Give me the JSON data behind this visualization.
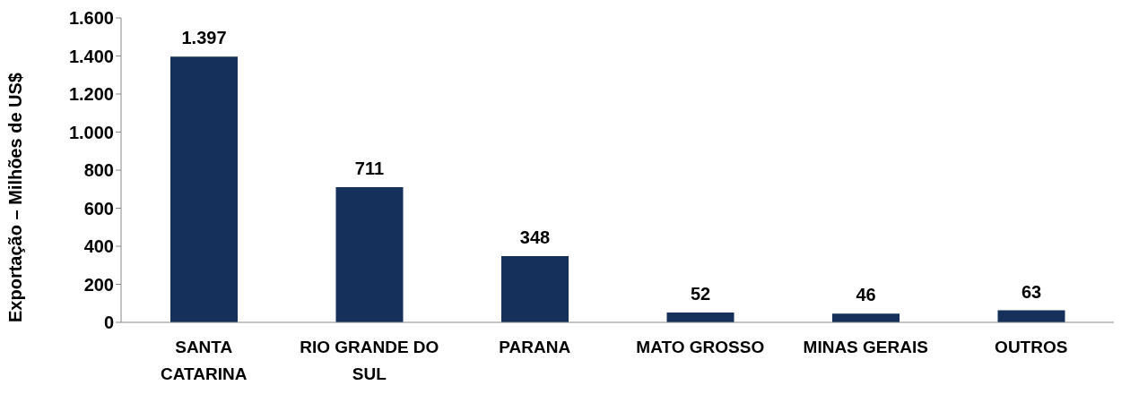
{
  "chart_data": {
    "type": "bar",
    "ylabel": "Exportação – Milhões de US$",
    "categories": [
      "SANTA CATARINA",
      "RIO GRANDE DO SUL",
      "PARANA",
      "MATO GROSSO",
      "MINAS GERAIS",
      "OUTROS"
    ],
    "values": [
      1397,
      711,
      348,
      52,
      46,
      63
    ],
    "value_labels": [
      "1.397",
      "711",
      "348",
      "52",
      "46",
      "63"
    ],
    "color": "#15305a",
    "ylim": [
      0,
      1600
    ],
    "yticks": [
      0,
      200,
      400,
      600,
      800,
      {
        "value": 1000,
        "label": "1.000"
      },
      {
        "value": 1200,
        "label": "1.200"
      },
      {
        "value": 1400,
        "label": "1.400"
      },
      {
        "value": 1600,
        "label": "1.600"
      }
    ],
    "grid": false
  }
}
